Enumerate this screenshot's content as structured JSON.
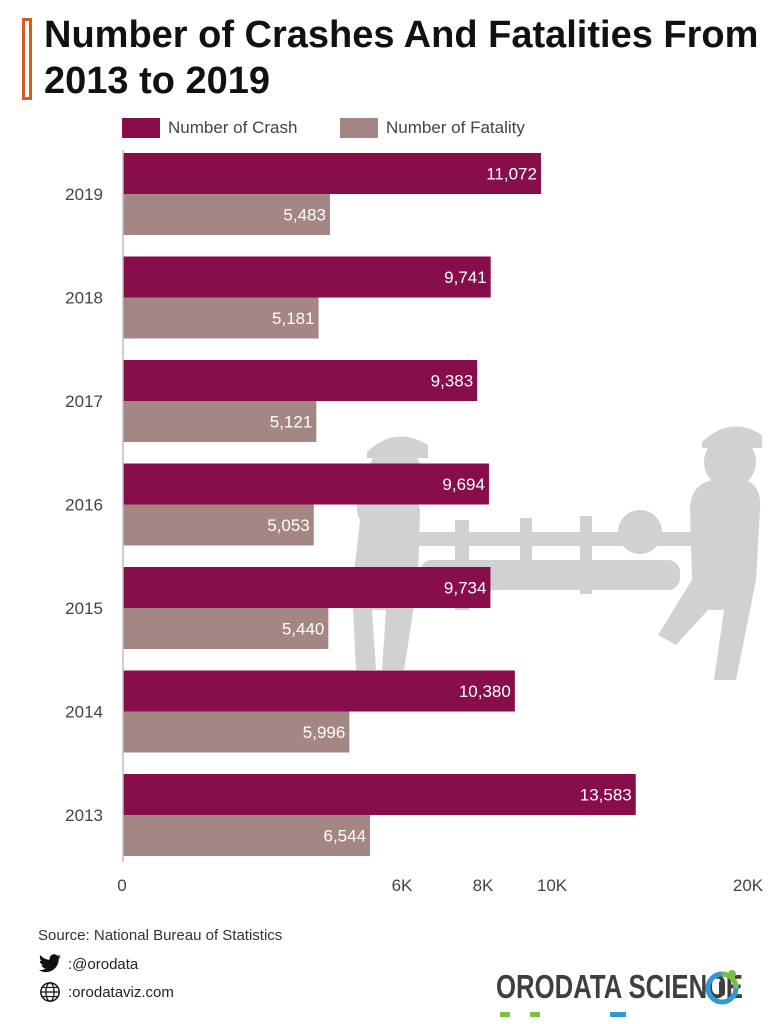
{
  "title": "Number of Crashes And Fatalities From 2013 to 2019",
  "colors": {
    "crash": "#870d4b",
    "fatality": "#a48784",
    "accent": "#d75a1e",
    "watermark": "#c9c9c9"
  },
  "legend": [
    {
      "label": "Number of Crash"
    },
    {
      "label": "Number of Fatality"
    }
  ],
  "chart_data": {
    "type": "bar",
    "orientation": "horizontal",
    "categories": [
      "2019",
      "2018",
      "2017",
      "2016",
      "2015",
      "2014",
      "2013"
    ],
    "series": [
      {
        "name": "Number of Crash",
        "values": [
          11072,
          9741,
          9383,
          9694,
          9734,
          10380,
          13583
        ],
        "labels": [
          "11,072",
          "9,741",
          "9,383",
          "9,694",
          "9,734",
          "10,380",
          "13,583"
        ]
      },
      {
        "name": "Number of Fatality",
        "values": [
          5483,
          5181,
          5121,
          5053,
          5440,
          5996,
          6544
        ],
        "labels": [
          "5,483",
          "5,181",
          "5,121",
          "5,053",
          "5,440",
          "5,996",
          "6,544"
        ]
      }
    ],
    "x_ticks": [
      {
        "label": "0",
        "value": 0
      },
      {
        "label": "6K",
        "value": 6000
      },
      {
        "label": "8K",
        "value": 8000
      },
      {
        "label": "10K",
        "value": 10000
      },
      {
        "label": "20K",
        "value": 20000
      }
    ],
    "xlim": [
      0,
      20000
    ],
    "grid": false,
    "legend_position": "top-left"
  },
  "footer": {
    "source": "Source: National Bureau of Statistics",
    "twitter": ":@orodata",
    "website": ":orodataviz.com",
    "brand": "ORODATA SCIENCE"
  },
  "icons": {
    "twitter": "twitter-bird-icon",
    "website": "globe-icon",
    "watermark": "stretcher-bearers-icon",
    "brand_logo": "orodata-logo-icon"
  }
}
